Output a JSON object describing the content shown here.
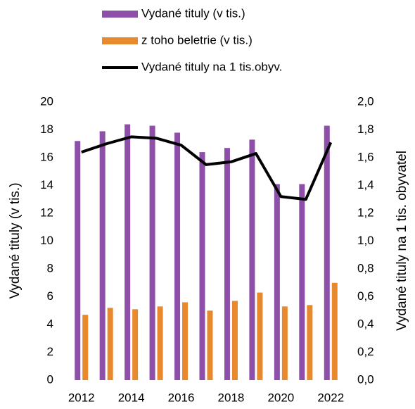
{
  "chart_data": {
    "type": "bar_line",
    "categories": [
      "2012",
      null,
      "2014",
      null,
      "2016",
      null,
      "2018",
      null,
      "2020",
      null,
      "2022"
    ],
    "series": [
      {
        "name": "Vydané tituly (v tis.)",
        "color": "#8e4fa8",
        "type": "bar",
        "values": [
          17.2,
          17.9,
          18.4,
          18.3,
          17.8,
          16.4,
          16.7,
          17.3,
          14.1,
          14.1,
          18.3
        ]
      },
      {
        "name": "z toho beletrie (v tis.)",
        "color": "#e8892e",
        "type": "bar",
        "values": [
          4.7,
          5.2,
          5.1,
          5.3,
          5.6,
          5.0,
          5.7,
          6.3,
          5.3,
          5.4,
          7.0
        ]
      },
      {
        "name": "Vydané tituly na 1 tis.obyv.",
        "color": "#000000",
        "type": "line",
        "axis": "y2",
        "values": [
          1.64,
          1.7,
          1.75,
          1.74,
          1.69,
          1.55,
          1.57,
          1.63,
          1.32,
          1.3,
          1.71
        ]
      }
    ],
    "y_label": "Vydané tituly (v tis.)",
    "y2_label": "Vydané tituly na 1 tis. obyvatel",
    "ylim": [
      0,
      20
    ],
    "yticks": [
      0,
      2,
      4,
      6,
      8,
      10,
      12,
      14,
      16,
      18,
      20
    ],
    "y2lim": [
      0,
      2
    ],
    "y2ticks": [
      {
        "value": 0,
        "label": "0,0"
      },
      {
        "value": 0.2,
        "label": "0,2"
      },
      {
        "value": 0.4,
        "label": "0,4"
      },
      {
        "value": 0.6,
        "label": "0,6"
      },
      {
        "value": 0.8,
        "label": "0,8"
      },
      {
        "value": 1.0,
        "label": "1,0"
      },
      {
        "value": 1.2,
        "label": "1,2"
      },
      {
        "value": 1.4,
        "label": "1,4"
      },
      {
        "value": 1.6,
        "label": "1,6"
      },
      {
        "value": 1.8,
        "label": "1,8"
      },
      {
        "value": 2.0,
        "label": "2,0"
      }
    ],
    "legend": "top"
  }
}
